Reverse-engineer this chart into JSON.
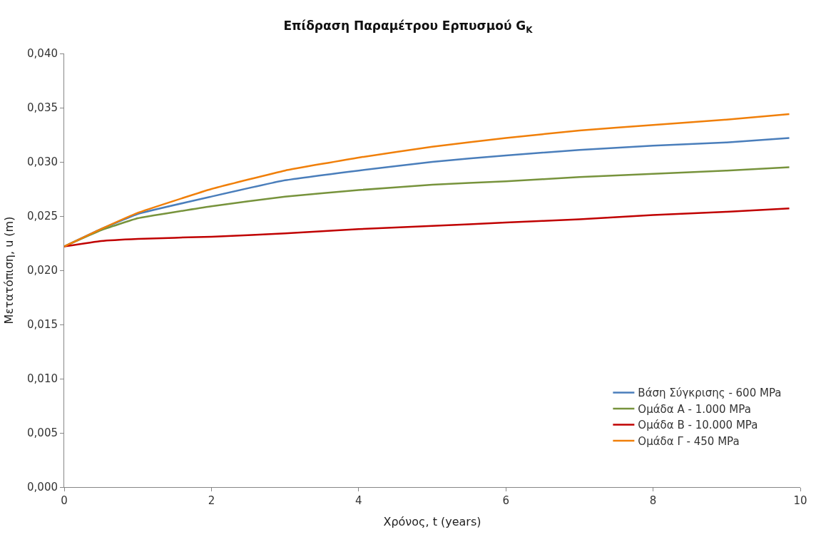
{
  "chart_data": {
    "type": "line",
    "title": "Επίδραση Παραμέτρου Ερπυσμού G$_{K}$",
    "xlabel": "Χρόνος, t (years)",
    "ylabel": "Μετατόπιση, u (m)",
    "x": [
      0,
      0.5,
      1,
      2,
      3,
      4,
      5,
      6,
      7,
      8,
      9,
      9.85
    ],
    "series": [
      {
        "name": "Βάση Σύγκρισης - 600 MPa",
        "color": "#4a7ebb",
        "values": [
          0.0222,
          0.0238,
          0.0252,
          0.0268,
          0.0283,
          0.0292,
          0.03,
          0.0306,
          0.0311,
          0.0315,
          0.0318,
          0.0322
        ]
      },
      {
        "name": "Ομάδα Α - 1.000 MPa",
        "color": "#77933c",
        "values": [
          0.0222,
          0.0237,
          0.0248,
          0.0259,
          0.0268,
          0.0274,
          0.0279,
          0.0282,
          0.0286,
          0.0289,
          0.0292,
          0.0295
        ]
      },
      {
        "name": "Ομάδα Β - 10.000 MPa",
        "color": "#c00000",
        "values": [
          0.0222,
          0.0227,
          0.0229,
          0.0231,
          0.0234,
          0.0238,
          0.0241,
          0.0244,
          0.0247,
          0.0251,
          0.0254,
          0.0257
        ]
      },
      {
        "name": "Ομάδα Γ - 450 MPa",
        "color": "#f07f09",
        "values": [
          0.0222,
          0.0238,
          0.0253,
          0.0275,
          0.0292,
          0.0304,
          0.0314,
          0.0322,
          0.0329,
          0.0334,
          0.0339,
          0.0344
        ]
      }
    ],
    "xlim": [
      0,
      10
    ],
    "xticks": [
      0,
      2,
      4,
      6,
      8,
      10
    ],
    "ylim": [
      0,
      0.04
    ],
    "yticks": [
      {
        "value": 0,
        "label": "0,000"
      },
      {
        "value": 0.005,
        "label": "0,005"
      },
      {
        "value": 0.01,
        "label": "0,010"
      },
      {
        "value": 0.015,
        "label": "0,015"
      },
      {
        "value": 0.02,
        "label": "0,020"
      },
      {
        "value": 0.025,
        "label": "0,025"
      },
      {
        "value": 0.03,
        "label": "0,030"
      },
      {
        "value": 0.035,
        "label": "0,035"
      },
      {
        "value": 0.04,
        "label": "0,040"
      }
    ],
    "legend": "bottom right",
    "marker": "none",
    "line_style": "solid"
  }
}
